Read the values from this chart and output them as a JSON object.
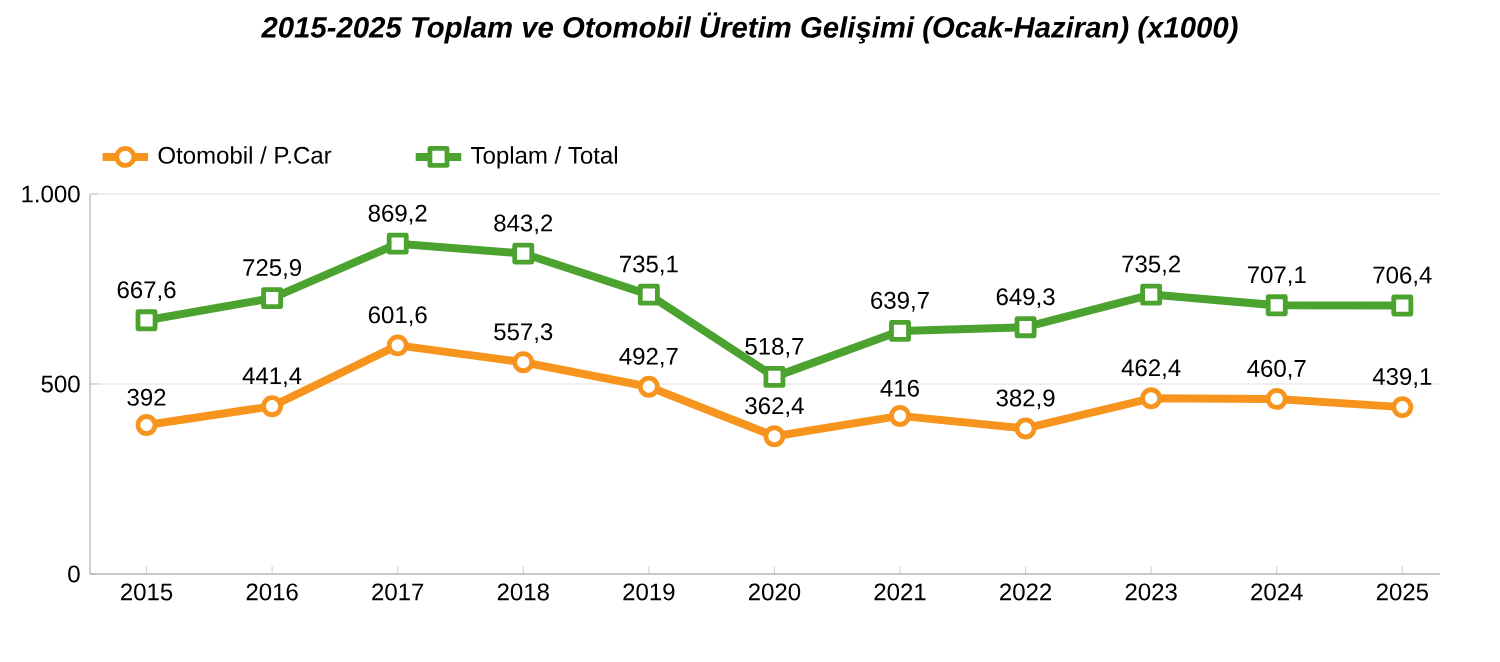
{
  "chart_data": {
    "type": "line",
    "title": "2015-2025 Toplam ve Otomobil Üretim Gelişimi (Ocak-Haziran) (x1000)",
    "categories": [
      "2015",
      "2016",
      "2017",
      "2018",
      "2019",
      "2020",
      "2021",
      "2022",
      "2023",
      "2024",
      "2025"
    ],
    "series": [
      {
        "name": "Otomobil / P.Car",
        "color": "#f7941d",
        "marker": "circle",
        "values": [
          392,
          441.4,
          601.6,
          557.3,
          492.7,
          362.4,
          416,
          382.9,
          462.4,
          460.7,
          439.1
        ],
        "value_labels": [
          "392",
          "441,4",
          "601,6",
          "557,3",
          "492,7",
          "362,4",
          "416",
          "382,9",
          "462,4",
          "460,7",
          "439,1"
        ]
      },
      {
        "name": "Toplam / Total",
        "color": "#4ca22f",
        "marker": "square",
        "values": [
          667.6,
          725.9,
          869.2,
          843.2,
          735.1,
          518.7,
          639.7,
          649.3,
          735.2,
          707.1,
          706.4
        ],
        "value_labels": [
          "667,6",
          "725,9",
          "869,2",
          "843,2",
          "735,1",
          "518,7",
          "639,7",
          "649,3",
          "735,2",
          "707,1",
          "706,4"
        ]
      }
    ],
    "ylim": [
      0,
      1000
    ],
    "yticks": [
      0,
      500,
      {
        "value": 1000,
        "label": "1.000"
      }
    ],
    "grid": "y",
    "legend": "top left",
    "line_style": "solid"
  }
}
